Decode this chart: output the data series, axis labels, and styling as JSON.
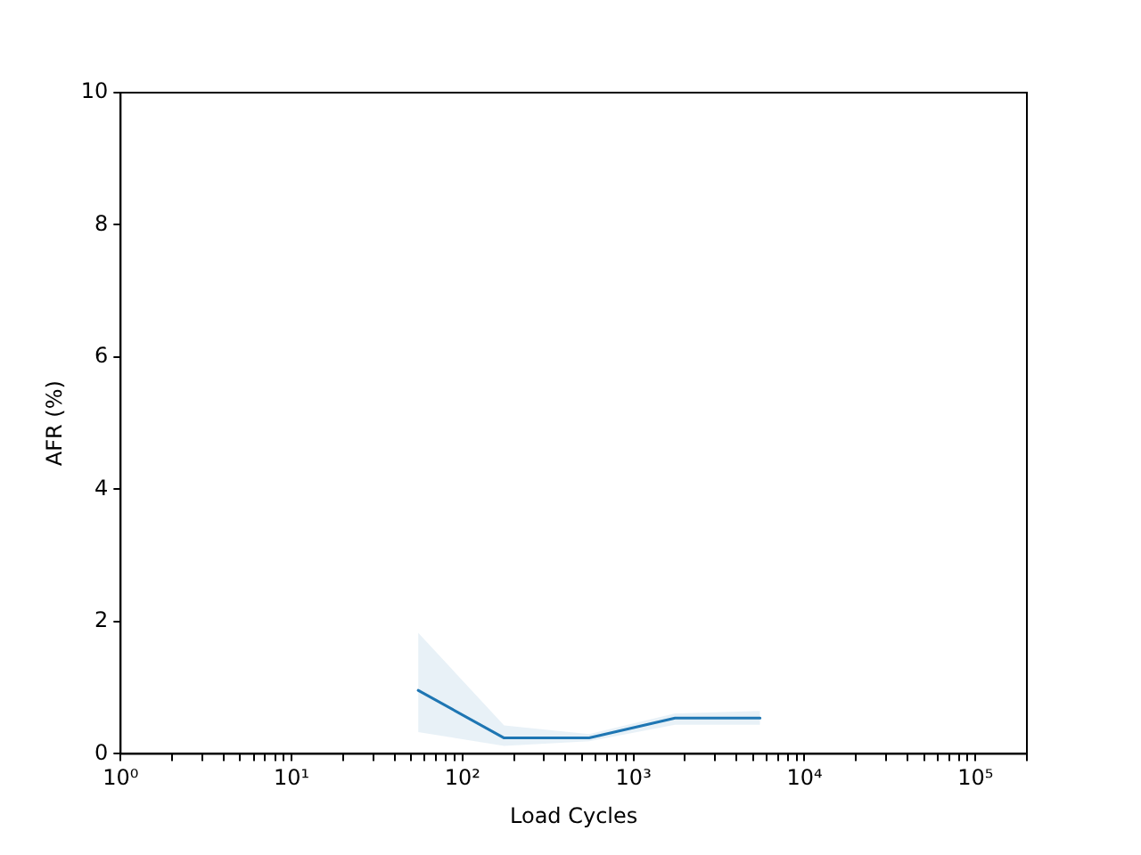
{
  "chart_data": {
    "type": "line",
    "xlabel": "Load Cycles",
    "ylabel": "AFR (%)",
    "log": "x",
    "grid": false,
    "legend": false,
    "marker": "none",
    "line_style": "solid",
    "x": [
      55,
      175,
      550,
      1750,
      5500
    ],
    "series": [
      {
        "color": "#1f77b4",
        "values": [
          0.96,
          0.24,
          0.24,
          0.54,
          0.54
        ],
        "lower": [
          0.33,
          0.12,
          0.19,
          0.44,
          0.44
        ],
        "upper": [
          1.83,
          0.43,
          0.3,
          0.61,
          0.65
        ]
      }
    ],
    "xlim": [
      1,
      200000
    ],
    "xticks": [
      {
        "value": 1,
        "label": "10⁰"
      },
      {
        "value": 2,
        "label": null
      },
      {
        "value": 3,
        "label": null
      },
      {
        "value": 4,
        "label": null
      },
      {
        "value": 5,
        "label": null
      },
      {
        "value": 6,
        "label": null
      },
      {
        "value": 7,
        "label": null
      },
      {
        "value": 8,
        "label": null
      },
      {
        "value": 9,
        "label": null
      },
      {
        "value": 10,
        "label": "10¹"
      },
      {
        "value": 20,
        "label": null
      },
      {
        "value": 30,
        "label": null
      },
      {
        "value": 40,
        "label": null
      },
      {
        "value": 50,
        "label": null
      },
      {
        "value": 60,
        "label": null
      },
      {
        "value": 70,
        "label": null
      },
      {
        "value": 80,
        "label": null
      },
      {
        "value": 90,
        "label": null
      },
      {
        "value": 100,
        "label": "10²"
      },
      {
        "value": 200,
        "label": null
      },
      {
        "value": 300,
        "label": null
      },
      {
        "value": 400,
        "label": null
      },
      {
        "value": 500,
        "label": null
      },
      {
        "value": 600,
        "label": null
      },
      {
        "value": 700,
        "label": null
      },
      {
        "value": 800,
        "label": null
      },
      {
        "value": 900,
        "label": null
      },
      {
        "value": 1000,
        "label": "10³"
      },
      {
        "value": 2000,
        "label": null
      },
      {
        "value": 3000,
        "label": null
      },
      {
        "value": 4000,
        "label": null
      },
      {
        "value": 5000,
        "label": null
      },
      {
        "value": 6000,
        "label": null
      },
      {
        "value": 7000,
        "label": null
      },
      {
        "value": 8000,
        "label": null
      },
      {
        "value": 9000,
        "label": null
      },
      {
        "value": 10000,
        "label": "10⁴"
      },
      {
        "value": 20000,
        "label": null
      },
      {
        "value": 30000,
        "label": null
      },
      {
        "value": 40000,
        "label": null
      },
      {
        "value": 50000,
        "label": null
      },
      {
        "value": 60000,
        "label": null
      },
      {
        "value": 70000,
        "label": null
      },
      {
        "value": 80000,
        "label": null
      },
      {
        "value": 90000,
        "label": null
      },
      {
        "value": 100000,
        "label": "10⁵"
      },
      {
        "value": 200000,
        "label": null
      }
    ],
    "ylim": [
      0,
      10
    ],
    "yticks": [
      0,
      2,
      4,
      6,
      8,
      10
    ]
  }
}
